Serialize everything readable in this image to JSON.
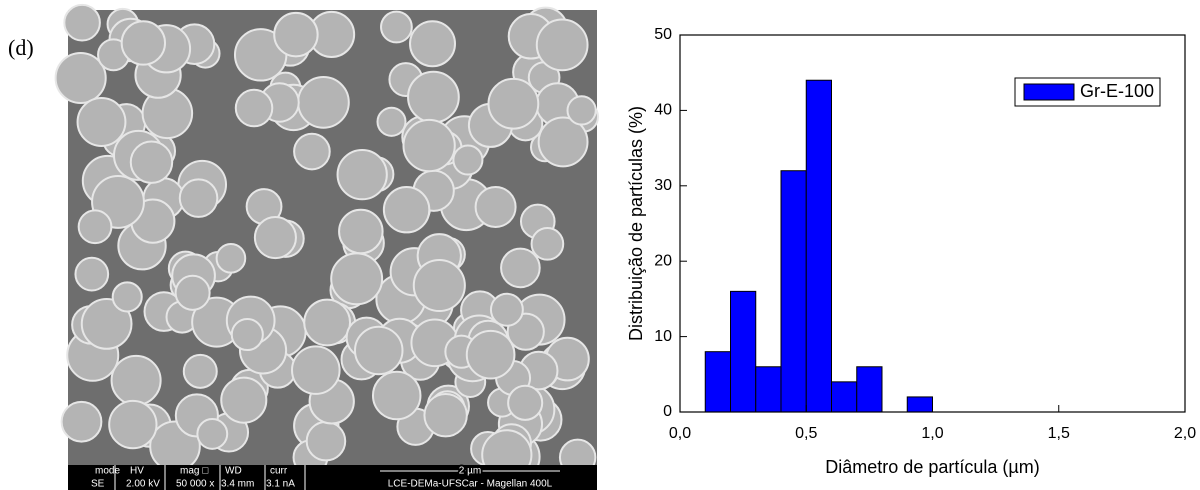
{
  "panel_label": "(d)",
  "sem_info": {
    "headers": [
      "mode",
      "HV",
      "mag □",
      "WD",
      "curr"
    ],
    "values": [
      "SE",
      "2.00 kV",
      "50 000 x",
      "3.4 mm",
      "3.1 nA"
    ],
    "scale_bar": "2 µm",
    "instrument": "LCE-DEMa-UFSCar - Magellan 400L"
  },
  "chart_data": {
    "type": "histogram",
    "xlabel": "Diâmetro de partícula (µm)",
    "ylabel": "Distribuição de partículas (%)",
    "bins": [
      0.1,
      0.2,
      0.3,
      0.4,
      0.5,
      0.6,
      0.7,
      0.8,
      0.9,
      1.0
    ],
    "series": [
      {
        "name": "Gr-E-100",
        "color": "#0000ff",
        "values": [
          8,
          16,
          6,
          32,
          44,
          4,
          6,
          0,
          2
        ]
      }
    ],
    "xlim": [
      0,
      2
    ],
    "ylim": [
      0,
      50
    ],
    "xticks": [
      {
        "value": 0,
        "label": "0,0"
      },
      {
        "value": 0.5,
        "label": "0,5"
      },
      {
        "value": 1,
        "label": "1,0"
      },
      {
        "value": 1.5,
        "label": "1,5"
      },
      {
        "value": 2,
        "label": "2,0"
      }
    ],
    "yticks": [
      0,
      10,
      20,
      30,
      40,
      50
    ],
    "legend": "upper right"
  }
}
